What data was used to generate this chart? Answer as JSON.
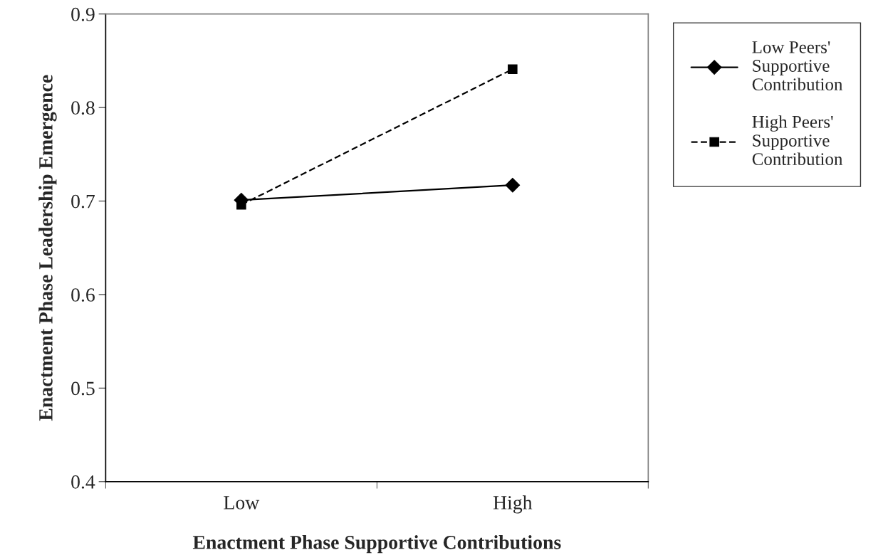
{
  "chart_data": {
    "type": "line",
    "xlabel": "Enactment Phase Supportive Contributions",
    "ylabel": "Enactment Phase Leadership Emergence",
    "categories": [
      "Low",
      "High"
    ],
    "series": [
      {
        "name": "Low Peers'\nSupportive\nContribution",
        "color": "#000000",
        "values": [
          0.701,
          0.717
        ],
        "marker": "diamond",
        "line_style": "solid"
      },
      {
        "name": "High Peers'\nSupportive\nContribution",
        "color": "#000000",
        "values": [
          0.696,
          0.841
        ],
        "marker": "square",
        "line_style": "dashed"
      }
    ],
    "ylim": [
      0.4,
      0.9
    ],
    "yticks": [
      0.4,
      0.5,
      0.6,
      0.7,
      0.8,
      0.9
    ],
    "grid": false,
    "legend": "top right"
  }
}
